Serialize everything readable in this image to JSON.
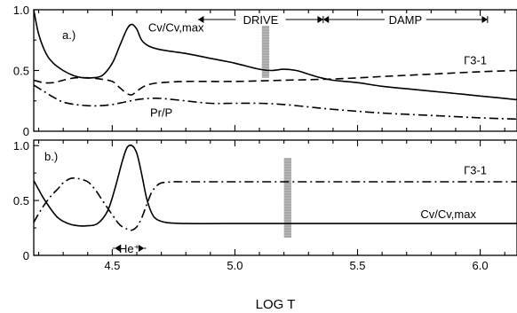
{
  "chart_data": {
    "type": "line",
    "xlabel": "LOG T",
    "xlim": [
      4.18,
      6.15
    ],
    "xticks": [
      {
        "value": 4.5,
        "label": "4.5"
      },
      {
        "value": 5.0,
        "label": "5.0"
      },
      {
        "value": 5.5,
        "label": "5.5"
      },
      {
        "value": 6.0,
        "label": "6.0"
      }
    ],
    "panels": [
      {
        "tag": "a.)",
        "ylim": [
          0,
          1.0
        ],
        "yticks": [
          {
            "value": 0,
            "label": "0"
          },
          {
            "value": 0.5,
            "label": "0.5"
          },
          {
            "value": 1.0,
            "label": "1.0"
          }
        ],
        "band": [
          5.11,
          5.14
        ],
        "annotations": [
          {
            "id": "drive",
            "text": "DRIVE",
            "x_from": 4.85,
            "x_to": 5.36
          },
          {
            "id": "damp",
            "text": "DAMP",
            "x_from": 5.36,
            "x_to": 6.03
          }
        ],
        "series": [
          {
            "name": "Cv/Cv,max",
            "style": "solid",
            "label_at": [
              4.76,
              0.82
            ],
            "x": [
              4.18,
              4.2,
              4.23,
              4.26,
              4.3,
              4.34,
              4.38,
              4.42,
              4.46,
              4.5,
              4.53,
              4.56,
              4.58,
              4.6,
              4.62,
              4.65,
              4.7,
              4.8,
              4.9,
              5.0,
              5.1,
              5.15,
              5.2,
              5.25,
              5.3,
              5.35,
              5.4,
              5.5,
              5.6,
              5.7,
              5.8,
              5.9,
              6.0,
              6.15
            ],
            "y": [
              1.0,
              0.8,
              0.64,
              0.56,
              0.5,
              0.46,
              0.44,
              0.44,
              0.46,
              0.56,
              0.7,
              0.84,
              0.88,
              0.84,
              0.75,
              0.7,
              0.67,
              0.64,
              0.6,
              0.56,
              0.51,
              0.5,
              0.51,
              0.5,
              0.47,
              0.44,
              0.42,
              0.4,
              0.37,
              0.35,
              0.33,
              0.31,
              0.29,
              0.26
            ]
          },
          {
            "name": "Γ3-1",
            "style": "dashed",
            "label_at": [
              5.98,
              0.55
            ],
            "x": [
              4.18,
              4.22,
              4.26,
              4.3,
              4.35,
              4.4,
              4.45,
              4.5,
              4.53,
              4.56,
              4.58,
              4.6,
              4.63,
              4.66,
              4.7,
              4.8,
              5.0,
              5.2,
              5.4,
              5.6,
              5.8,
              6.0,
              6.15
            ],
            "y": [
              0.42,
              0.4,
              0.4,
              0.42,
              0.44,
              0.44,
              0.43,
              0.41,
              0.36,
              0.31,
              0.3,
              0.33,
              0.37,
              0.39,
              0.4,
              0.41,
              0.41,
              0.42,
              0.43,
              0.45,
              0.47,
              0.49,
              0.5
            ]
          },
          {
            "name": "Pr/P",
            "style": "dashdot",
            "label_at": [
              4.7,
              0.12
            ],
            "x": [
              4.18,
              4.22,
              4.26,
              4.3,
              4.35,
              4.4,
              4.45,
              4.5,
              4.55,
              4.6,
              4.65,
              4.7,
              4.8,
              4.9,
              5.0,
              5.1,
              5.2,
              5.3,
              5.4,
              5.6,
              5.8,
              6.0,
              6.15
            ],
            "y": [
              0.38,
              0.33,
              0.28,
              0.24,
              0.22,
              0.21,
              0.21,
              0.22,
              0.24,
              0.26,
              0.27,
              0.27,
              0.25,
              0.23,
              0.23,
              0.23,
              0.22,
              0.2,
              0.18,
              0.15,
              0.13,
              0.11,
              0.1
            ]
          }
        ]
      },
      {
        "tag": "b.)",
        "ylim": [
          0,
          1.05
        ],
        "yticks": [
          {
            "value": 0,
            "label": "0"
          },
          {
            "value": 0.5,
            "label": "0.5"
          },
          {
            "value": 1.0,
            "label": "1.0"
          }
        ],
        "band": [
          5.2,
          5.23
        ],
        "annotations": [
          {
            "id": "he-plus",
            "text": "He⁺",
            "x_from": 4.51,
            "x_to": 4.63
          }
        ],
        "series": [
          {
            "name": "Γ3-1",
            "style": "dashdot",
            "label_at": [
              5.98,
              0.74
            ],
            "x": [
              4.18,
              4.2,
              4.22,
              4.25,
              4.28,
              4.3,
              4.33,
              4.36,
              4.4,
              4.43,
              4.46,
              4.5,
              4.53,
              4.56,
              4.58,
              4.6,
              4.62,
              4.64,
              4.66,
              4.68,
              4.7,
              4.75,
              4.8,
              5.0,
              5.5,
              6.0,
              6.15
            ],
            "y": [
              0.3,
              0.38,
              0.45,
              0.54,
              0.61,
              0.66,
              0.7,
              0.7,
              0.67,
              0.6,
              0.5,
              0.37,
              0.28,
              0.24,
              0.23,
              0.26,
              0.34,
              0.46,
              0.57,
              0.63,
              0.66,
              0.67,
              0.67,
              0.67,
              0.67,
              0.67,
              0.67
            ]
          },
          {
            "name": "Cv/Cv,max",
            "style": "solid",
            "label_at": [
              5.87,
              0.34
            ],
            "x": [
              4.18,
              4.2,
              4.22,
              4.25,
              4.28,
              4.32,
              4.36,
              4.4,
              4.44,
              4.48,
              4.51,
              4.54,
              4.56,
              4.58,
              4.6,
              4.62,
              4.64,
              4.66,
              4.68,
              4.72,
              4.8,
              5.0,
              5.5,
              6.0,
              6.15
            ],
            "y": [
              0.68,
              0.6,
              0.52,
              0.42,
              0.34,
              0.29,
              0.27,
              0.27,
              0.29,
              0.4,
              0.6,
              0.85,
              0.98,
              1.0,
              0.93,
              0.74,
              0.52,
              0.39,
              0.33,
              0.3,
              0.29,
              0.29,
              0.29,
              0.29,
              0.29
            ]
          }
        ]
      }
    ]
  }
}
